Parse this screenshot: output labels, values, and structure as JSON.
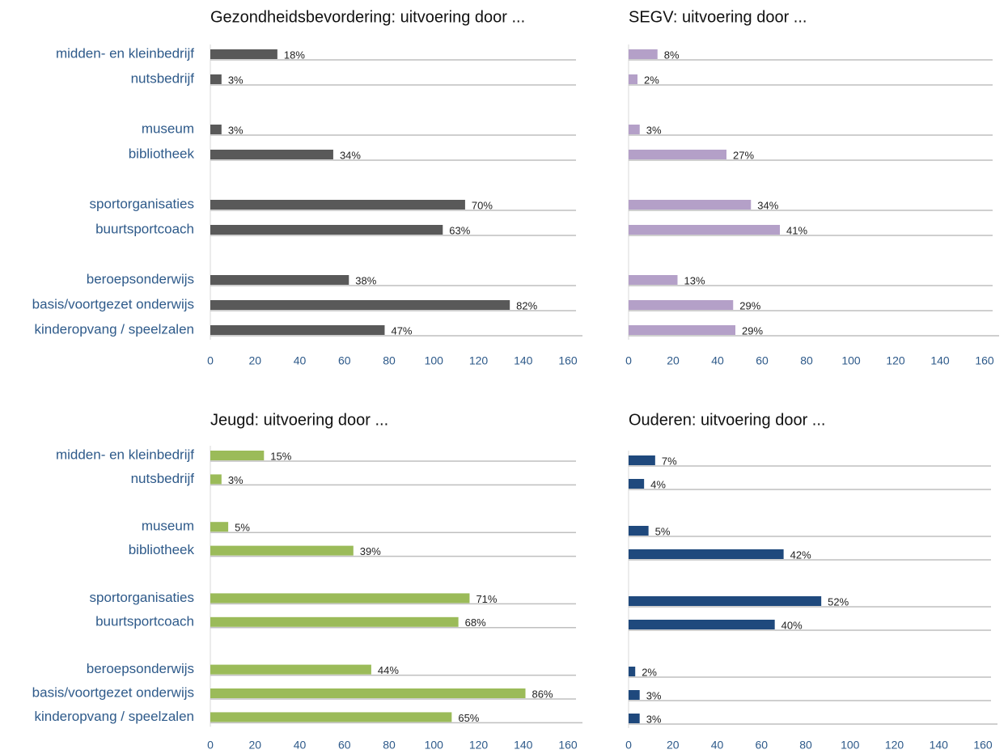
{
  "chart_data": [
    {
      "type": "bar",
      "title": "Gezondheidsbevordering:  uitvoering door ...",
      "categories": [
        "midden- en kleinbedrijf",
        "nutsbedrijf",
        "museum",
        "bibliotheek",
        "sportorganisaties",
        "buurtsportcoach",
        "beroepsonderwijs",
        "basis/voortgezet onderwijs",
        "kinderopvang / speelzalen"
      ],
      "values": [
        30,
        5,
        5,
        55,
        114,
        104,
        62,
        134,
        78
      ],
      "data_labels": [
        "18%",
        "3%",
        "3%",
        "34%",
        "70%",
        "63%",
        "38%",
        "82%",
        "47%"
      ],
      "color": "#595959",
      "xlim": [
        0,
        160
      ],
      "xticks": [
        0,
        20,
        40,
        60,
        80,
        100,
        120,
        140,
        160
      ]
    },
    {
      "type": "bar",
      "title": "SEGV: uitvoering door ...",
      "values": [
        13,
        4,
        5,
        44,
        55,
        68,
        22,
        47,
        48
      ],
      "data_labels": [
        "8%",
        "2%",
        "3%",
        "27%",
        "34%",
        "41%",
        "13%",
        "29%",
        "29%"
      ],
      "color": "#b4a0c8",
      "xlim": [
        0,
        160
      ],
      "xticks": [
        0,
        20,
        40,
        60,
        80,
        100,
        120,
        140,
        160
      ]
    },
    {
      "type": "bar",
      "title": "Jeugd: uitvoering door ...",
      "categories": [
        "midden- en kleinbedrijf",
        "nutsbedrijf",
        "museum",
        "bibliotheek",
        "sportorganisaties",
        "buurtsportcoach",
        "beroepsonderwijs",
        "basis/voortgezet onderwijs",
        "kinderopvang / speelzalen"
      ],
      "values": [
        24,
        5,
        8,
        64,
        116,
        111,
        72,
        141,
        108
      ],
      "data_labels": [
        "15%",
        "3%",
        "5%",
        "39%",
        "71%",
        "68%",
        "44%",
        "86%",
        "65%"
      ],
      "color": "#9bbb59",
      "xlim": [
        0,
        160
      ],
      "xticks": [
        0,
        20,
        40,
        60,
        80,
        100,
        120,
        140,
        160
      ]
    },
    {
      "type": "bar",
      "title": "Ouderen: uitvoering door ...",
      "values": [
        12,
        7,
        9,
        70,
        87,
        66,
        3,
        5,
        5
      ],
      "data_labels": [
        "7%",
        "4%",
        "5%",
        "42%",
        "52%",
        "40%",
        "2%",
        "3%",
        "3%"
      ],
      "color": "#1f497d",
      "xlim": [
        0,
        160
      ],
      "xticks": [
        0,
        20,
        40,
        60,
        80,
        100,
        120,
        140,
        160
      ]
    }
  ]
}
